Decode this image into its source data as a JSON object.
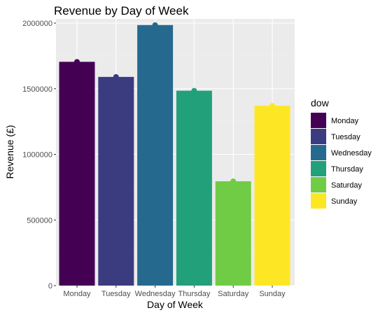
{
  "chart_data": {
    "type": "bar",
    "title": "Revenue by Day of Week",
    "xlabel": "Day of Week",
    "ylabel": "Revenue (£)",
    "categories": [
      "Monday",
      "Tuesday",
      "Wednesday",
      "Thursday",
      "Saturday",
      "Sunday"
    ],
    "values": [
      1705000,
      1590000,
      1985000,
      1485000,
      795000,
      1370000
    ],
    "colors": [
      "#440154",
      "#3b3b80",
      "#26698e",
      "#22a07a",
      "#70cc44",
      "#fde725"
    ],
    "ylim": [
      0,
      2000000
    ],
    "yticks": [
      0,
      500000,
      1000000,
      1500000,
      2000000
    ],
    "ytick_labels": [
      "0",
      "500000",
      "1000000",
      "1500000",
      "2000000"
    ],
    "grid": true,
    "legend": {
      "title": "dow",
      "position": "right",
      "items": [
        "Monday",
        "Tuesday",
        "Wednesday",
        "Thursday",
        "Saturday",
        "Sunday"
      ]
    }
  }
}
